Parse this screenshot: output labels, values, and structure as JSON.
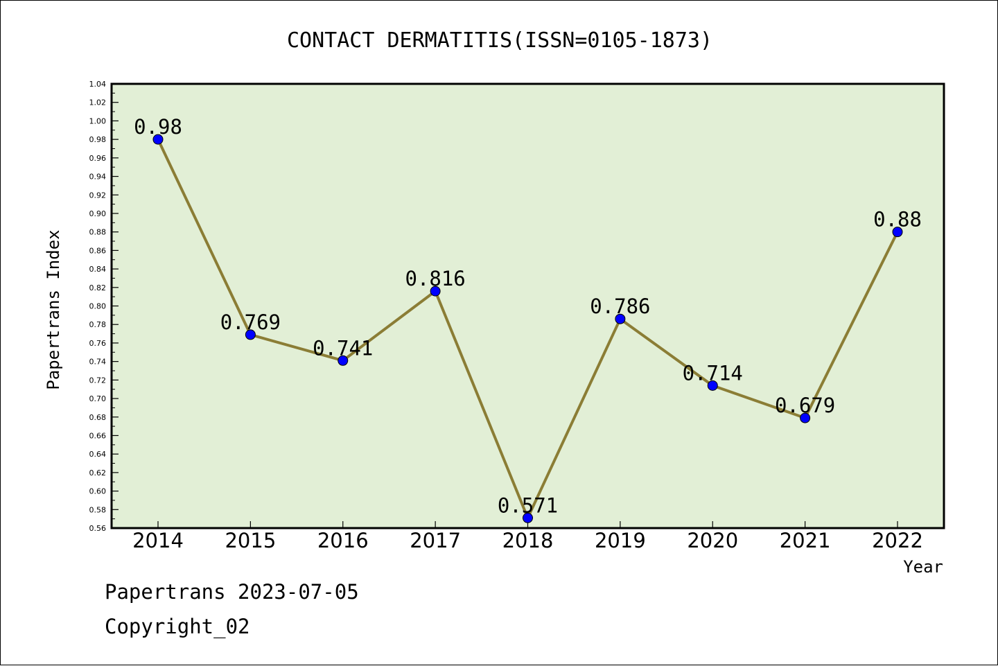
{
  "chart_data": {
    "type": "line",
    "title": "CONTACT DERMATITIS(ISSN=0105-1873)",
    "xlabel": "Year",
    "ylabel": "Papertrans Index",
    "categories": [
      "2014",
      "2015",
      "2016",
      "2017",
      "2018",
      "2019",
      "2020",
      "2021",
      "2022"
    ],
    "series": [
      {
        "values": [
          0.98,
          0.769,
          0.741,
          0.816,
          0.571,
          0.786,
          0.714,
          0.679,
          0.88
        ],
        "labels": [
          "0.98",
          "0.769",
          "0.741",
          "0.816",
          "0.571",
          "0.786",
          "0.714",
          "0.679",
          "0.88"
        ]
      }
    ],
    "ylim": [
      0.56,
      1.04
    ],
    "yticks": [
      "0.56",
      "0.58",
      "0.60",
      "0.62",
      "0.64",
      "0.66",
      "0.68",
      "0.70",
      "0.72",
      "0.74",
      "0.76",
      "0.78",
      "0.80",
      "0.82",
      "0.84",
      "0.86",
      "0.88",
      "0.90",
      "0.92",
      "0.94",
      "0.96",
      "0.98",
      "1.00",
      "1.02",
      "1.04"
    ],
    "grid": false,
    "colors": {
      "plot_background": "#e2efd6",
      "line": "#8b7d35",
      "marker": "#0000ff"
    }
  },
  "footer": {
    "line1": "Papertrans 2023-07-05",
    "line2": "Copyright_02"
  }
}
